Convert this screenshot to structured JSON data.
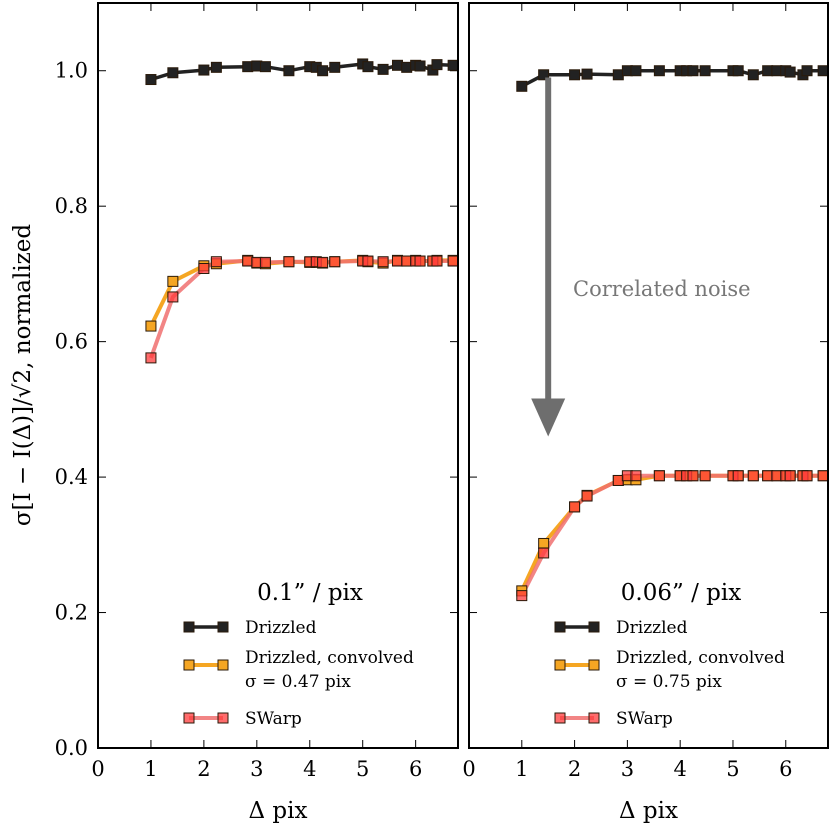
{
  "chart_data": [
    {
      "type": "line",
      "panel": "left",
      "xlabel": "Δ pix",
      "ylabel": "σ[I − I(Δ)]/√2, normalized",
      "xlim": [
        0,
        6.8
      ],
      "ylim": [
        0.0,
        1.1
      ],
      "xticks": [
        "0",
        "1",
        "2",
        "3",
        "4",
        "5",
        "6"
      ],
      "yticks": [
        "0.0",
        "0.2",
        "0.4",
        "0.6",
        "0.8",
        "1.0"
      ],
      "legend_title": "0.1” / pix",
      "legend_position": "bottom-right",
      "series": [
        {
          "name": "Drizzled",
          "color": "#222222",
          "x": [
            1.0,
            1.414,
            2.0,
            2.236,
            2.828,
            3.0,
            3.162,
            3.606,
            4.0,
            4.123,
            4.243,
            4.472,
            5.0,
            5.099,
            5.385,
            5.657,
            5.831,
            6.0,
            6.083,
            6.325,
            6.403,
            6.708
          ],
          "y": [
            0.987,
            0.997,
            1.001,
            1.005,
            1.006,
            1.007,
            1.006,
            1.0,
            1.006,
            1.005,
            1.0,
            1.005,
            1.01,
            1.006,
            1.002,
            1.008,
            1.005,
            1.008,
            1.007,
            1.001,
            1.009,
            1.008
          ]
        },
        {
          "name": "Drizzled, convolved",
          "name_line2": "σ = 0.47 pix",
          "color": "#f5a623",
          "x": [
            1.0,
            1.414,
            2.0,
            2.236,
            2.828,
            3.0,
            3.162,
            3.606,
            4.0,
            4.123,
            4.243,
            4.472,
            5.0,
            5.099,
            5.385,
            5.657,
            5.831,
            6.0,
            6.083,
            6.325,
            6.403,
            6.708
          ],
          "y": [
            0.623,
            0.689,
            0.712,
            0.715,
            0.72,
            0.716,
            0.715,
            0.718,
            0.717,
            0.717,
            0.716,
            0.718,
            0.72,
            0.718,
            0.716,
            0.72,
            0.719,
            0.72,
            0.719,
            0.719,
            0.72,
            0.72
          ]
        },
        {
          "name": "SWarp",
          "color": "#f07070",
          "x": [
            1.0,
            1.414,
            2.0,
            2.236,
            2.828,
            3.0,
            3.162,
            3.606,
            4.0,
            4.123,
            4.243,
            4.472,
            5.0,
            5.099,
            5.385,
            5.657,
            5.831,
            6.0,
            6.083,
            6.325,
            6.403,
            6.708
          ],
          "y": [
            0.576,
            0.666,
            0.708,
            0.718,
            0.719,
            0.717,
            0.717,
            0.718,
            0.718,
            0.718,
            0.717,
            0.718,
            0.719,
            0.719,
            0.718,
            0.719,
            0.719,
            0.719,
            0.719,
            0.719,
            0.719,
            0.719
          ]
        }
      ]
    },
    {
      "type": "line",
      "panel": "right",
      "xlabel": "Δ pix",
      "xlim": [
        0,
        6.8
      ],
      "ylim": [
        0.0,
        1.1
      ],
      "xticks": [
        "0",
        "1",
        "2",
        "3",
        "4",
        "5",
        "6"
      ],
      "legend_title": "0.06” / pix",
      "legend_position": "bottom-right",
      "annotation": "Correlated noise",
      "arrow": {
        "x": 1.5,
        "y_from": 0.99,
        "y_to": 0.46
      },
      "series": [
        {
          "name": "Drizzled",
          "color": "#222222",
          "x": [
            1.0,
            1.414,
            2.0,
            2.236,
            2.828,
            3.0,
            3.162,
            3.606,
            4.0,
            4.123,
            4.243,
            4.472,
            5.0,
            5.099,
            5.385,
            5.657,
            5.831,
            6.0,
            6.083,
            6.325,
            6.403,
            6.708
          ],
          "y": [
            0.977,
            0.994,
            0.994,
            0.995,
            0.994,
            1.0,
            1.0,
            1.0,
            1.0,
            1.0,
            1.0,
            1.0,
            1.0,
            1.0,
            0.994,
            1.0,
            1.0,
            1.0,
            0.998,
            0.994,
            1.0,
            1.0
          ]
        },
        {
          "name": "Drizzled, convolved",
          "name_line2": "σ = 0.75 pix",
          "color": "#f5a623",
          "x": [
            1.0,
            1.414,
            2.0,
            2.236,
            2.828,
            3.0,
            3.162,
            3.606,
            4.0,
            4.123,
            4.243,
            4.472,
            5.0,
            5.099,
            5.385,
            5.657,
            5.831,
            6.0,
            6.083,
            6.325,
            6.403,
            6.708
          ],
          "y": [
            0.232,
            0.302,
            0.356,
            0.373,
            0.395,
            0.396,
            0.396,
            0.402,
            0.402,
            0.402,
            0.402,
            0.402,
            0.402,
            0.402,
            0.402,
            0.402,
            0.402,
            0.402,
            0.402,
            0.402,
            0.402,
            0.402
          ]
        },
        {
          "name": "SWarp",
          "color": "#f07070",
          "x": [
            1.0,
            1.414,
            2.0,
            2.236,
            2.828,
            3.0,
            3.162,
            3.606,
            4.0,
            4.123,
            4.243,
            4.472,
            5.0,
            5.099,
            5.385,
            5.657,
            5.831,
            6.0,
            6.083,
            6.325,
            6.403,
            6.708
          ],
          "y": [
            0.225,
            0.288,
            0.356,
            0.372,
            0.395,
            0.402,
            0.402,
            0.402,
            0.402,
            0.402,
            0.402,
            0.402,
            0.402,
            0.402,
            0.402,
            0.402,
            0.402,
            0.402,
            0.402,
            0.402,
            0.402,
            0.402
          ]
        }
      ]
    }
  ]
}
